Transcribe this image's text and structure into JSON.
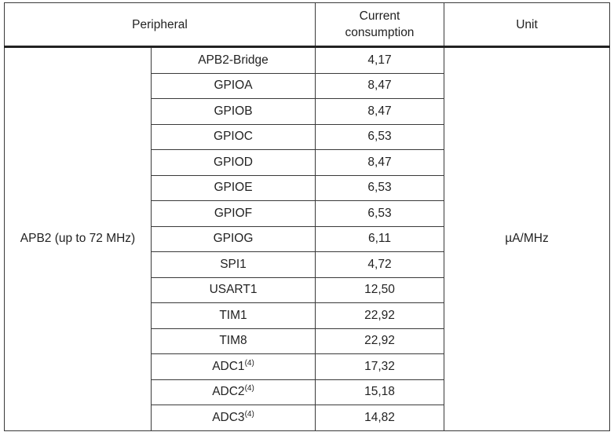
{
  "title_cropped": "",
  "headers": {
    "peripheral": "Peripheral",
    "current_line1": "Current",
    "current_line2": "consumption",
    "unit": "Unit"
  },
  "bus": "APB2 (up to 72 MHz)",
  "unit": "µA/MHz",
  "rows": [
    {
      "name": "APB2-Bridge",
      "note": "",
      "value": "4,17"
    },
    {
      "name": "GPIOA",
      "note": "",
      "value": "8,47"
    },
    {
      "name": "GPIOB",
      "note": "",
      "value": "8,47"
    },
    {
      "name": "GPIOC",
      "note": "",
      "value": "6,53"
    },
    {
      "name": "GPIOD",
      "note": "",
      "value": "8,47"
    },
    {
      "name": "GPIOE",
      "note": "",
      "value": "6,53"
    },
    {
      "name": "GPIOF",
      "note": "",
      "value": "6,53"
    },
    {
      "name": "GPIOG",
      "note": "",
      "value": "6,11"
    },
    {
      "name": "SPI1",
      "note": "",
      "value": "4,72"
    },
    {
      "name": "USART1",
      "note": "",
      "value": "12,50"
    },
    {
      "name": "TIM1",
      "note": "",
      "value": "22,92"
    },
    {
      "name": "TIM8",
      "note": "",
      "value": "22,92"
    },
    {
      "name": "ADC1",
      "note": "(4)",
      "value": "17,32"
    },
    {
      "name": "ADC2",
      "note": "(4)",
      "value": "15,18"
    },
    {
      "name": "ADC3",
      "note": "(4)",
      "value": "14,82"
    }
  ]
}
